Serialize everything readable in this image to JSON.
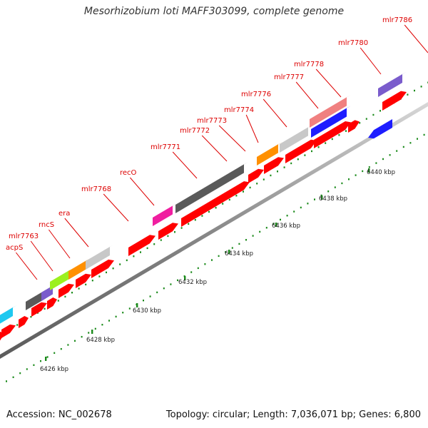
{
  "title": "Mesorhizobium loti MAFF303099, complete genome",
  "footer": {
    "accession": "Accession: NC_002678",
    "summary": "Topology: circular; Length: 7,036,071 bp; Genes: 6,800"
  },
  "colors": {
    "backbone": "#8c8c8c",
    "cds_forward": "#ff0000",
    "cds_reverse": "#1d1dff",
    "label": "#dd0000",
    "tick": "#1a8a1a"
  },
  "scale": {
    "unit": "kbp",
    "labels": [
      "6426 kbp",
      "6428 kbp",
      "6430 kbp",
      "6432 kbp",
      "6434 kbp",
      "6436 kbp",
      "6438 kbp",
      "6440 kbp"
    ]
  },
  "gene_labels": [
    "acpS",
    "mlr7763",
    "rncS",
    "era",
    "mlr7768",
    "recO",
    "mlr7771",
    "mlr7772",
    "mlr7773",
    "mlr7774",
    "mlr7776",
    "mlr7777",
    "mlr7778",
    "mlr7780",
    "mlr7786"
  ],
  "cog_features": [
    {
      "name": "cog-cyan",
      "color": "#1ec8f0"
    },
    {
      "name": "cog-darkgray-1",
      "color": "#5a5a5a"
    },
    {
      "name": "cog-purple-1",
      "color": "#7a5ccc"
    },
    {
      "name": "cog-lime",
      "color": "#9cf01e"
    },
    {
      "name": "cog-orange-1",
      "color": "#ff9000"
    },
    {
      "name": "cog-lightgray-1",
      "color": "#c8c8c8"
    },
    {
      "name": "cog-magenta",
      "color": "#f01ea0"
    },
    {
      "name": "cog-darkgray-2",
      "color": "#5a5a5a"
    },
    {
      "name": "cog-orange-2",
      "color": "#ff9000"
    },
    {
      "name": "cog-lightgray-2",
      "color": "#c8c8c8"
    },
    {
      "name": "cog-salmon",
      "color": "#f08080"
    },
    {
      "name": "cog-blue",
      "color": "#1d1dff"
    },
    {
      "name": "cog-purple-2",
      "color": "#7a5ccc"
    }
  ]
}
